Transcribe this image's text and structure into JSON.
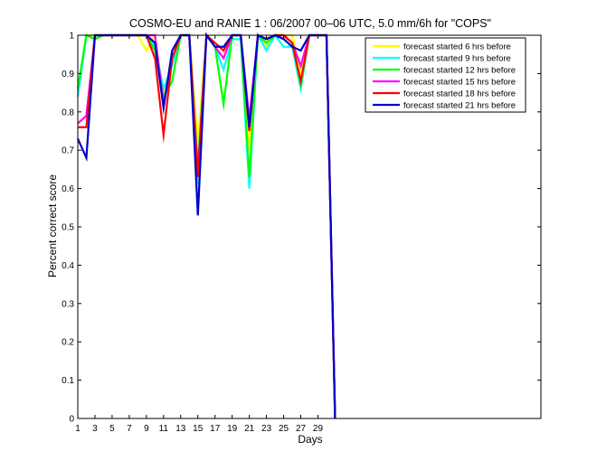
{
  "chart_data": {
    "type": "line",
    "title": "COSMO-EU and RANIE 1 : 06/2007 00–06 UTC, 5.0 mm/6h for \"COPS\"",
    "xlabel": "Days",
    "ylabel": "Percent correct score",
    "xlim": [
      1,
      55
    ],
    "ylim": [
      0,
      1
    ],
    "xticks": [
      1,
      3,
      5,
      7,
      9,
      11,
      13,
      15,
      17,
      19,
      21,
      23,
      25,
      27,
      29
    ],
    "yticks": [
      0,
      0.1,
      0.2,
      0.3,
      0.4,
      0.5,
      0.6,
      0.7,
      0.8,
      0.9,
      1
    ],
    "ytick_labels": [
      "0",
      "0.1",
      "0.2",
      "0.3",
      "0.4",
      "0.5",
      "0.6",
      "0.7",
      "0.8",
      "0.9",
      "1"
    ],
    "grid": false,
    "legend_position": "top-right",
    "x": [
      1,
      2,
      3,
      4,
      5,
      6,
      7,
      8,
      9,
      10,
      11,
      12,
      13,
      14,
      15,
      16,
      17,
      18,
      19,
      20,
      21,
      22,
      23,
      24,
      25,
      26,
      27,
      28,
      29,
      30,
      31
    ],
    "series": [
      {
        "name": "forecast started 6 hrs before",
        "color": "#ffff00",
        "values": [
          0.85,
          1.0,
          1.0,
          1.0,
          1.0,
          1.0,
          1.0,
          1.0,
          0.96,
          1.0,
          0.84,
          0.94,
          1.0,
          1.0,
          0.72,
          1.0,
          0.98,
          0.96,
          1.0,
          1.0,
          0.7,
          1.0,
          0.97,
          1.0,
          1.0,
          1.0,
          0.9,
          1.0,
          1.0,
          1.0,
          0.0
        ]
      },
      {
        "name": "forecast started 9 hrs before",
        "color": "#00ffff",
        "values": [
          0.84,
          1.0,
          0.99,
          1.0,
          1.0,
          1.0,
          1.0,
          1.0,
          1.0,
          0.97,
          0.86,
          0.92,
          1.0,
          1.0,
          0.61,
          1.0,
          0.97,
          0.91,
          0.99,
          0.99,
          0.6,
          1.0,
          0.96,
          1.0,
          0.97,
          0.97,
          0.86,
          1.0,
          1.0,
          1.0,
          0.0
        ]
      },
      {
        "name": "forecast started 12 hrs before",
        "color": "#00ff00",
        "values": [
          0.86,
          1.0,
          0.99,
          1.0,
          1.0,
          1.0,
          1.0,
          1.0,
          1.0,
          0.96,
          0.84,
          0.88,
          1.0,
          1.0,
          0.66,
          1.0,
          0.97,
          0.82,
          1.0,
          1.0,
          0.63,
          1.0,
          0.98,
          1.0,
          1.0,
          0.98,
          0.87,
          1.0,
          1.0,
          1.0,
          0.0
        ]
      },
      {
        "name": "forecast started 15 hrs before",
        "color": "#ff00ff",
        "values": [
          0.77,
          0.79,
          1.0,
          1.0,
          1.0,
          1.0,
          1.0,
          1.0,
          1.0,
          1.0,
          0.82,
          0.94,
          1.0,
          1.0,
          0.64,
          1.0,
          0.97,
          0.94,
          1.0,
          1.0,
          0.78,
          1.0,
          0.99,
          1.0,
          1.0,
          0.98,
          0.92,
          1.0,
          1.0,
          1.0,
          0.0
        ]
      },
      {
        "name": "forecast started 18 hrs before",
        "color": "#ff0000",
        "values": [
          0.76,
          0.76,
          1.0,
          1.0,
          1.0,
          1.0,
          1.0,
          1.0,
          1.0,
          0.94,
          0.74,
          0.94,
          1.0,
          1.0,
          0.63,
          1.0,
          0.98,
          0.96,
          1.0,
          1.0,
          0.75,
          1.0,
          0.99,
          1.0,
          1.0,
          0.98,
          0.88,
          1.0,
          1.0,
          1.0,
          0.0
        ]
      },
      {
        "name": "forecast started 21 hrs before",
        "color": "#0000cc",
        "values": [
          0.73,
          0.68,
          1.0,
          1.0,
          1.0,
          1.0,
          1.0,
          1.0,
          1.0,
          0.98,
          0.81,
          0.96,
          1.0,
          1.0,
          0.53,
          1.0,
          0.97,
          0.97,
          1.0,
          1.0,
          0.76,
          1.0,
          0.99,
          1.0,
          0.99,
          0.97,
          0.96,
          1.0,
          1.0,
          1.0,
          0.0
        ]
      }
    ]
  }
}
